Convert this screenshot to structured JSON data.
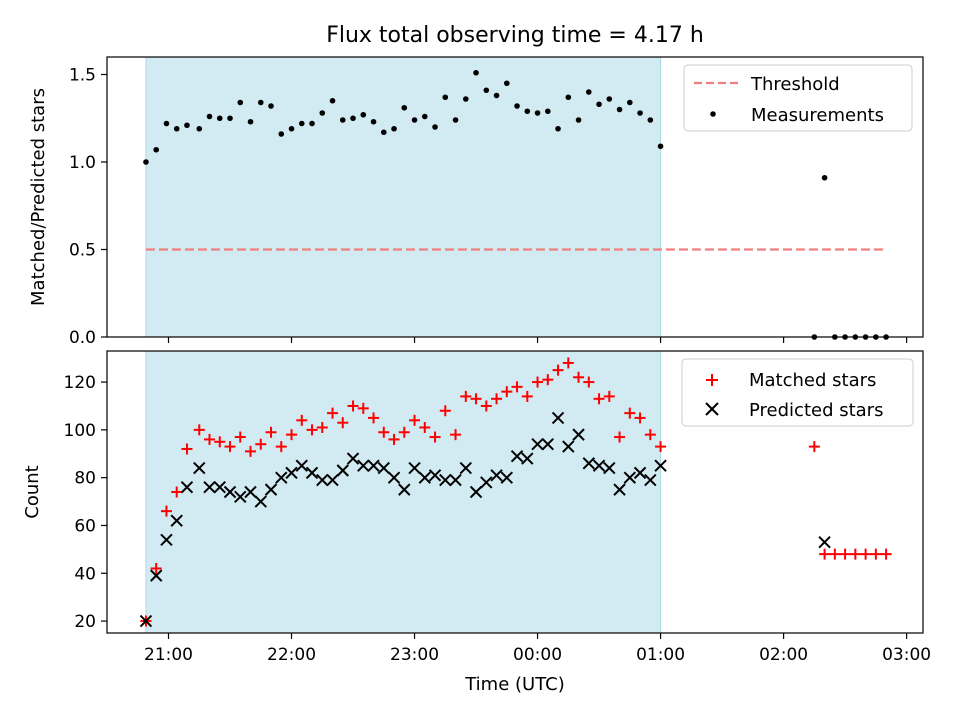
{
  "chart_data": [
    {
      "type": "scatter",
      "title": "Flux total observing time = 4.17 h",
      "ylabel": "Matched/Predicted stars",
      "xlabel": "",
      "xlim": [
        "20:30",
        "03:08"
      ],
      "ylim": [
        0,
        1.6
      ],
      "yticks": [
        {
          "value": 0.0,
          "label": "0.0"
        },
        {
          "value": 0.5,
          "label": "0.5"
        },
        {
          "value": 1.0,
          "label": "1.0"
        },
        {
          "value": 1.5,
          "label": "1.5"
        }
      ],
      "xticks": [
        "21:00",
        "22:00",
        "23:00",
        "00:00",
        "01:00",
        "02:00",
        "03:00"
      ],
      "shaded_span": {
        "from": "20:49",
        "to": "01:00",
        "color": "#add8e6"
      },
      "legend_position": "top-right",
      "threshold": {
        "name": "Threshold",
        "value": 0.5,
        "from": "20:49",
        "to": "02:49",
        "color": "#f08080"
      },
      "series": [
        {
          "name": "Measurements",
          "marker": "dot",
          "color": "#000000",
          "points": [
            [
              "20:49",
              1.0
            ],
            [
              "20:54",
              1.07
            ],
            [
              "20:59",
              1.22
            ],
            [
              "21:04",
              1.19
            ],
            [
              "21:09",
              1.21
            ],
            [
              "21:15",
              1.19
            ],
            [
              "21:20",
              1.26
            ],
            [
              "21:25",
              1.25
            ],
            [
              "21:30",
              1.25
            ],
            [
              "21:35",
              1.34
            ],
            [
              "21:40",
              1.23
            ],
            [
              "21:45",
              1.34
            ],
            [
              "21:50",
              1.32
            ],
            [
              "21:55",
              1.16
            ],
            [
              "22:00",
              1.19
            ],
            [
              "22:05",
              1.22
            ],
            [
              "22:10",
              1.22
            ],
            [
              "22:15",
              1.28
            ],
            [
              "22:20",
              1.35
            ],
            [
              "22:25",
              1.24
            ],
            [
              "22:30",
              1.25
            ],
            [
              "22:35",
              1.27
            ],
            [
              "22:40",
              1.23
            ],
            [
              "22:45",
              1.17
            ],
            [
              "22:50",
              1.19
            ],
            [
              "22:55",
              1.31
            ],
            [
              "23:00",
              1.24
            ],
            [
              "23:05",
              1.26
            ],
            [
              "23:10",
              1.2
            ],
            [
              "23:15",
              1.37
            ],
            [
              "23:20",
              1.24
            ],
            [
              "23:25",
              1.36
            ],
            [
              "23:30",
              1.51
            ],
            [
              "23:35",
              1.41
            ],
            [
              "23:40",
              1.38
            ],
            [
              "23:45",
              1.45
            ],
            [
              "23:50",
              1.32
            ],
            [
              "23:55",
              1.29
            ],
            [
              "00:00",
              1.28
            ],
            [
              "00:05",
              1.29
            ],
            [
              "00:10",
              1.19
            ],
            [
              "00:15",
              1.37
            ],
            [
              "00:20",
              1.24
            ],
            [
              "00:25",
              1.4
            ],
            [
              "00:30",
              1.33
            ],
            [
              "00:35",
              1.36
            ],
            [
              "00:40",
              1.3
            ],
            [
              "00:45",
              1.34
            ],
            [
              "00:50",
              1.28
            ],
            [
              "00:55",
              1.24
            ],
            [
              "01:00",
              1.09
            ],
            [
              "02:15",
              0.0
            ],
            [
              "02:20",
              0.91
            ],
            [
              "02:25",
              0.0
            ],
            [
              "02:30",
              0.0
            ],
            [
              "02:35",
              0.0
            ],
            [
              "02:40",
              0.0
            ],
            [
              "02:45",
              0.0
            ],
            [
              "02:50",
              0.0
            ]
          ]
        }
      ]
    },
    {
      "type": "scatter",
      "title": "",
      "xlabel": "Time (UTC)",
      "ylabel": "Count",
      "xlim": [
        "20:30",
        "03:08"
      ],
      "ylim": [
        15,
        133
      ],
      "yticks": [
        {
          "value": 20,
          "label": "20"
        },
        {
          "value": 40,
          "label": "40"
        },
        {
          "value": 60,
          "label": "60"
        },
        {
          "value": 80,
          "label": "80"
        },
        {
          "value": 100,
          "label": "100"
        },
        {
          "value": 120,
          "label": "120"
        }
      ],
      "xticks": [
        "21:00",
        "22:00",
        "23:00",
        "00:00",
        "01:00",
        "02:00",
        "03:00"
      ],
      "shaded_span": {
        "from": "20:49",
        "to": "01:00",
        "color": "#add8e6"
      },
      "legend_position": "top-right",
      "series": [
        {
          "name": "Matched stars",
          "marker": "plus",
          "color": "#ff0000",
          "points": [
            [
              "20:49",
              20
            ],
            [
              "20:54",
              42
            ],
            [
              "20:59",
              66
            ],
            [
              "21:04",
              74
            ],
            [
              "21:09",
              92
            ],
            [
              "21:15",
              100
            ],
            [
              "21:20",
              96
            ],
            [
              "21:25",
              95
            ],
            [
              "21:30",
              93
            ],
            [
              "21:35",
              97
            ],
            [
              "21:40",
              91
            ],
            [
              "21:45",
              94
            ],
            [
              "21:50",
              99
            ],
            [
              "21:55",
              93
            ],
            [
              "22:00",
              98
            ],
            [
              "22:05",
              104
            ],
            [
              "22:10",
              100
            ],
            [
              "22:15",
              101
            ],
            [
              "22:20",
              107
            ],
            [
              "22:25",
              103
            ],
            [
              "22:30",
              110
            ],
            [
              "22:35",
              109
            ],
            [
              "22:40",
              105
            ],
            [
              "22:45",
              99
            ],
            [
              "22:50",
              96
            ],
            [
              "22:55",
              99
            ],
            [
              "23:00",
              104
            ],
            [
              "23:05",
              101
            ],
            [
              "23:10",
              97
            ],
            [
              "23:15",
              108
            ],
            [
              "23:20",
              98
            ],
            [
              "23:25",
              114
            ],
            [
              "23:30",
              113
            ],
            [
              "23:35",
              110
            ],
            [
              "23:40",
              113
            ],
            [
              "23:45",
              116
            ],
            [
              "23:50",
              118
            ],
            [
              "23:55",
              114
            ],
            [
              "00:00",
              120
            ],
            [
              "00:05",
              121
            ],
            [
              "00:10",
              125
            ],
            [
              "00:15",
              128
            ],
            [
              "00:20",
              122
            ],
            [
              "00:25",
              120
            ],
            [
              "00:30",
              113
            ],
            [
              "00:35",
              114
            ],
            [
              "00:40",
              97
            ],
            [
              "00:45",
              107
            ],
            [
              "00:50",
              105
            ],
            [
              "00:55",
              98
            ],
            [
              "01:00",
              93
            ],
            [
              "02:15",
              93
            ],
            [
              "02:20",
              48
            ],
            [
              "02:25",
              48
            ],
            [
              "02:30",
              48
            ],
            [
              "02:35",
              48
            ],
            [
              "02:40",
              48
            ],
            [
              "02:45",
              48
            ],
            [
              "02:50",
              48
            ]
          ]
        },
        {
          "name": "Predicted stars",
          "marker": "x",
          "color": "#000000",
          "points": [
            [
              "20:49",
              20
            ],
            [
              "20:54",
              39
            ],
            [
              "20:59",
              54
            ],
            [
              "21:04",
              62
            ],
            [
              "21:09",
              76
            ],
            [
              "21:15",
              84
            ],
            [
              "21:20",
              76
            ],
            [
              "21:25",
              76
            ],
            [
              "21:30",
              74
            ],
            [
              "21:35",
              72
            ],
            [
              "21:40",
              74
            ],
            [
              "21:45",
              70
            ],
            [
              "21:50",
              75
            ],
            [
              "21:55",
              80
            ],
            [
              "22:00",
              82
            ],
            [
              "22:05",
              85
            ],
            [
              "22:10",
              82
            ],
            [
              "22:15",
              79
            ],
            [
              "22:20",
              79
            ],
            [
              "22:25",
              83
            ],
            [
              "22:30",
              88
            ],
            [
              "22:35",
              85
            ],
            [
              "22:40",
              85
            ],
            [
              "22:45",
              84
            ],
            [
              "22:50",
              80
            ],
            [
              "22:55",
              75
            ],
            [
              "23:00",
              84
            ],
            [
              "23:05",
              80
            ],
            [
              "23:10",
              81
            ],
            [
              "23:15",
              79
            ],
            [
              "23:20",
              79
            ],
            [
              "23:25",
              84
            ],
            [
              "23:30",
              74
            ],
            [
              "23:35",
              78
            ],
            [
              "23:40",
              81
            ],
            [
              "23:45",
              80
            ],
            [
              "23:50",
              89
            ],
            [
              "23:55",
              88
            ],
            [
              "00:00",
              94
            ],
            [
              "00:05",
              94
            ],
            [
              "00:10",
              105
            ],
            [
              "00:15",
              93
            ],
            [
              "00:20",
              98
            ],
            [
              "00:25",
              86
            ],
            [
              "00:30",
              85
            ],
            [
              "00:35",
              84
            ],
            [
              "00:40",
              75
            ],
            [
              "00:45",
              80
            ],
            [
              "00:50",
              82
            ],
            [
              "00:55",
              79
            ],
            [
              "01:00",
              85
            ],
            [
              "02:20",
              53
            ]
          ]
        }
      ]
    }
  ]
}
